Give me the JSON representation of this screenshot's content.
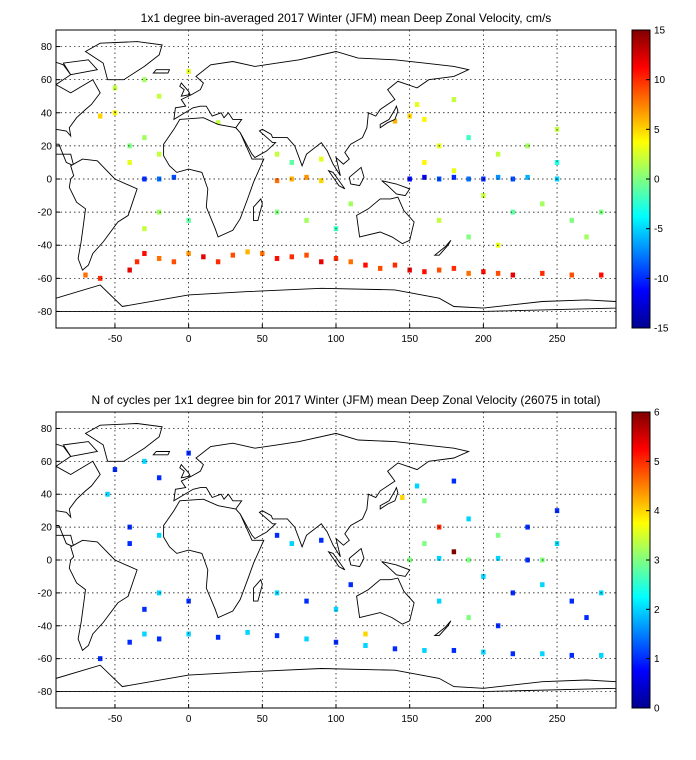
{
  "chart_data": [
    {
      "type": "heatmap",
      "title": "1x1 degree bin-averaged 2017 Winter (JFM) mean Deep Zonal Velocity, cm/s",
      "xlim": [
        -90,
        290
      ],
      "ylim": [
        -90,
        90
      ],
      "x_ticks": [
        -50,
        0,
        50,
        100,
        150,
        200,
        250
      ],
      "y_ticks": [
        -80,
        -60,
        -40,
        -20,
        0,
        20,
        40,
        60,
        80
      ],
      "grid": true,
      "colorbar": {
        "min": -15,
        "max": 15,
        "ticks": [
          -15,
          -10,
          -5,
          0,
          5,
          10,
          15
        ]
      },
      "colormap": [
        "#00008f",
        "#0000ff",
        "#0080ff",
        "#00ffff",
        "#80ff80",
        "#ffff00",
        "#ff8000",
        "#ff0000",
        "#800000"
      ],
      "bins": [
        [
          -40,
          -55,
          12
        ],
        [
          -35,
          -50,
          10
        ],
        [
          -30,
          -45,
          11
        ],
        [
          -20,
          -48,
          8
        ],
        [
          -10,
          -50,
          9
        ],
        [
          0,
          -45,
          7
        ],
        [
          10,
          -47,
          12
        ],
        [
          20,
          -50,
          10
        ],
        [
          30,
          -46,
          9
        ],
        [
          40,
          -44,
          6
        ],
        [
          50,
          -45,
          8
        ],
        [
          60,
          -48,
          11
        ],
        [
          70,
          -47,
          10
        ],
        [
          80,
          -46,
          9
        ],
        [
          90,
          -50,
          12
        ],
        [
          100,
          -48,
          10
        ],
        [
          110,
          -50,
          8
        ],
        [
          120,
          -52,
          11
        ],
        [
          130,
          -54,
          9
        ],
        [
          140,
          -52,
          10
        ],
        [
          150,
          -55,
          12
        ],
        [
          160,
          -56,
          11
        ],
        [
          170,
          -55,
          9
        ],
        [
          180,
          -54,
          10
        ],
        [
          190,
          -57,
          8
        ],
        [
          200,
          -56,
          11
        ],
        [
          210,
          -57,
          9
        ],
        [
          220,
          -58,
          12
        ],
        [
          240,
          -57,
          10
        ],
        [
          260,
          -58,
          9
        ],
        [
          280,
          -58,
          11
        ],
        [
          -60,
          -60,
          10
        ],
        [
          -70,
          -58,
          8
        ],
        [
          -30,
          0,
          -10
        ],
        [
          -20,
          0,
          -8
        ],
        [
          -10,
          1,
          -9
        ],
        [
          150,
          0,
          -11
        ],
        [
          160,
          1,
          -12
        ],
        [
          170,
          0,
          -9
        ],
        [
          180,
          1,
          -10
        ],
        [
          190,
          0,
          -8
        ],
        [
          200,
          0,
          -10
        ],
        [
          210,
          1,
          -7
        ],
        [
          220,
          0,
          -9
        ],
        [
          230,
          1,
          -6
        ],
        [
          250,
          0,
          -5
        ],
        [
          60,
          -1,
          8
        ],
        [
          70,
          0,
          6
        ],
        [
          80,
          1,
          7
        ],
        [
          90,
          -1,
          5
        ],
        [
          140,
          35,
          6
        ],
        [
          150,
          38,
          5
        ],
        [
          160,
          36,
          4
        ],
        [
          -60,
          38,
          5
        ],
        [
          -50,
          40,
          4
        ],
        [
          -40,
          10,
          3
        ],
        [
          -20,
          15,
          2
        ],
        [
          -30,
          25,
          1
        ],
        [
          10,
          35,
          -2
        ],
        [
          20,
          34,
          2
        ],
        [
          170,
          20,
          3
        ],
        [
          190,
          25,
          -2
        ],
        [
          210,
          15,
          2
        ],
        [
          230,
          20,
          1
        ],
        [
          250,
          10,
          -3
        ],
        [
          60,
          15,
          2
        ],
        [
          70,
          10,
          -1
        ],
        [
          90,
          12,
          3
        ],
        [
          160,
          10,
          4
        ],
        [
          180,
          5,
          3
        ],
        [
          -40,
          20,
          0
        ],
        [
          200,
          -10,
          2
        ],
        [
          220,
          -20,
          -1
        ],
        [
          240,
          -15,
          1
        ],
        [
          260,
          -25,
          0
        ],
        [
          -20,
          -20,
          1
        ],
        [
          0,
          -25,
          -1
        ],
        [
          -30,
          -30,
          2
        ],
        [
          60,
          -20,
          0
        ],
        [
          80,
          -25,
          1
        ],
        [
          100,
          -30,
          -2
        ],
        [
          110,
          -15,
          1
        ],
        [
          170,
          -25,
          2
        ],
        [
          190,
          -35,
          0
        ],
        [
          210,
          -40,
          3
        ],
        [
          -50,
          55,
          2
        ],
        [
          -30,
          60,
          1
        ],
        [
          0,
          65,
          3
        ],
        [
          -20,
          50,
          2
        ],
        [
          155,
          45,
          3
        ],
        [
          180,
          48,
          2
        ],
        [
          -60,
          -25,
          -2
        ],
        [
          270,
          -35,
          1
        ],
        [
          280,
          -20,
          0
        ],
        [
          250,
          30,
          2
        ]
      ]
    },
    {
      "type": "heatmap",
      "title": "N of cycles per 1x1 degree bin for 2017 Winter (JFM) mean Deep Zonal Velocity (26075 in total)",
      "xlim": [
        -90,
        290
      ],
      "ylim": [
        -90,
        90
      ],
      "x_ticks": [
        -50,
        0,
        50,
        100,
        150,
        200,
        250
      ],
      "y_ticks": [
        -80,
        -60,
        -40,
        -20,
        0,
        20,
        40,
        60,
        80
      ],
      "grid": true,
      "colorbar": {
        "min": 0,
        "max": 6,
        "ticks": [
          0,
          1,
          2,
          3,
          4,
          5,
          6
        ]
      },
      "colormap": [
        "#00008f",
        "#0000ff",
        "#0080ff",
        "#00ffff",
        "#80ff80",
        "#ffff00",
        "#ff8000",
        "#ff0000",
        "#800000"
      ],
      "bins": [
        [
          -40,
          -50,
          1
        ],
        [
          -30,
          -45,
          2
        ],
        [
          -20,
          -48,
          1
        ],
        [
          0,
          -45,
          2
        ],
        [
          20,
          -47,
          1
        ],
        [
          40,
          -44,
          2
        ],
        [
          60,
          -46,
          1
        ],
        [
          80,
          -48,
          2
        ],
        [
          100,
          -50,
          1
        ],
        [
          120,
          -52,
          2
        ],
        [
          140,
          -54,
          1
        ],
        [
          160,
          -55,
          2
        ],
        [
          180,
          -55,
          1
        ],
        [
          200,
          -56,
          2
        ],
        [
          220,
          -57,
          1
        ],
        [
          240,
          -57,
          2
        ],
        [
          260,
          -58,
          1
        ],
        [
          280,
          -58,
          2
        ],
        [
          -60,
          -60,
          1
        ],
        [
          150,
          0,
          3
        ],
        [
          170,
          1,
          2
        ],
        [
          190,
          0,
          3
        ],
        [
          210,
          1,
          2
        ],
        [
          230,
          0,
          1
        ],
        [
          145,
          38,
          4
        ],
        [
          160,
          36,
          3
        ],
        [
          -55,
          40,
          2
        ],
        [
          -40,
          10,
          1
        ],
        [
          -20,
          15,
          2
        ],
        [
          170,
          20,
          5
        ],
        [
          190,
          25,
          2
        ],
        [
          210,
          15,
          3
        ],
        [
          230,
          20,
          1
        ],
        [
          250,
          10,
          2
        ],
        [
          60,
          15,
          1
        ],
        [
          70,
          10,
          2
        ],
        [
          90,
          12,
          1
        ],
        [
          160,
          10,
          3
        ],
        [
          180,
          5,
          6
        ],
        [
          -40,
          20,
          1
        ],
        [
          200,
          -10,
          2
        ],
        [
          220,
          -20,
          1
        ],
        [
          240,
          -15,
          2
        ],
        [
          260,
          -25,
          1
        ],
        [
          -20,
          -20,
          2
        ],
        [
          0,
          -25,
          1
        ],
        [
          -30,
          -30,
          1
        ],
        [
          60,
          -20,
          2
        ],
        [
          80,
          -25,
          1
        ],
        [
          100,
          -30,
          2
        ],
        [
          110,
          -15,
          1
        ],
        [
          170,
          -25,
          2
        ],
        [
          190,
          -35,
          3
        ],
        [
          210,
          -40,
          1
        ],
        [
          -50,
          55,
          1
        ],
        [
          -30,
          60,
          2
        ],
        [
          0,
          65,
          1
        ],
        [
          -20,
          50,
          1
        ],
        [
          155,
          45,
          2
        ],
        [
          180,
          48,
          1
        ],
        [
          -60,
          -25,
          2
        ],
        [
          270,
          -35,
          1
        ],
        [
          280,
          -20,
          2
        ],
        [
          250,
          30,
          1
        ],
        [
          120,
          -45,
          4
        ],
        [
          240,
          0,
          3
        ]
      ]
    }
  ]
}
